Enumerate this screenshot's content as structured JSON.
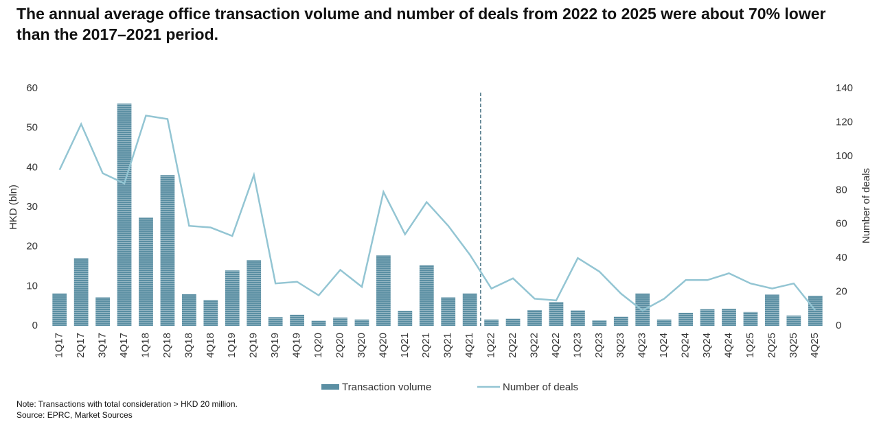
{
  "chart_data": {
    "type": "combo",
    "title": "The annual average office transaction volume and number of deals from 2022 to 2025 were about 70% lower than the 2017–2021 period.",
    "ylabel": "HKD (bln)",
    "y2label": "Number of deals",
    "note": "Note: Transactions with total consideration > HKD 20 million.",
    "source": "Source: EPRC, Market Sources",
    "categories": [
      "1Q17",
      "2Q17",
      "3Q17",
      "4Q17",
      "1Q18",
      "2Q18",
      "3Q18",
      "4Q18",
      "1Q19",
      "2Q19",
      "3Q19",
      "4Q19",
      "1Q20",
      "2Q20",
      "3Q20",
      "4Q20",
      "1Q21",
      "2Q21",
      "3Q21",
      "4Q21",
      "1Q22",
      "2Q22",
      "3Q22",
      "4Q22",
      "1Q23",
      "2Q23",
      "3Q23",
      "4Q23",
      "1Q24",
      "2Q24",
      "3Q24",
      "4Q24",
      "1Q25",
      "2Q25",
      "3Q25",
      "4Q25"
    ],
    "series": [
      {
        "name": "Transaction volume",
        "type": "bar",
        "color": "#5b8fa3",
        "values": [
          8.2,
          17.1,
          7.2,
          56.2,
          27.4,
          38.1,
          8.0,
          6.5,
          14.0,
          16.6,
          2.2,
          2.8,
          1.3,
          2.1,
          1.6,
          17.8,
          3.8,
          15.3,
          7.2,
          8.2,
          1.6,
          1.8,
          4.0,
          6.0,
          3.9,
          1.4,
          2.3,
          8.2,
          1.6,
          3.3,
          4.2,
          4.3,
          3.5,
          7.9,
          2.6,
          7.6
        ]
      },
      {
        "name": "Number of deals",
        "type": "line",
        "axis": "y2",
        "color": "#93c5d3",
        "values": [
          92,
          119,
          90,
          84,
          124,
          122,
          59,
          58,
          53,
          89,
          25,
          26,
          18,
          33,
          23,
          79,
          54,
          73,
          59,
          42,
          22,
          28,
          16,
          15,
          40,
          32,
          19,
          9,
          16,
          27,
          27,
          31,
          25,
          22,
          25,
          9
        ]
      }
    ],
    "ylim": [
      0,
      60
    ],
    "yticks": [
      0,
      10,
      20,
      30,
      40,
      50,
      60
    ],
    "y2lim": [
      0,
      140
    ],
    "y2ticks": [
      0,
      20,
      40,
      60,
      80,
      100,
      120,
      140
    ]
  }
}
